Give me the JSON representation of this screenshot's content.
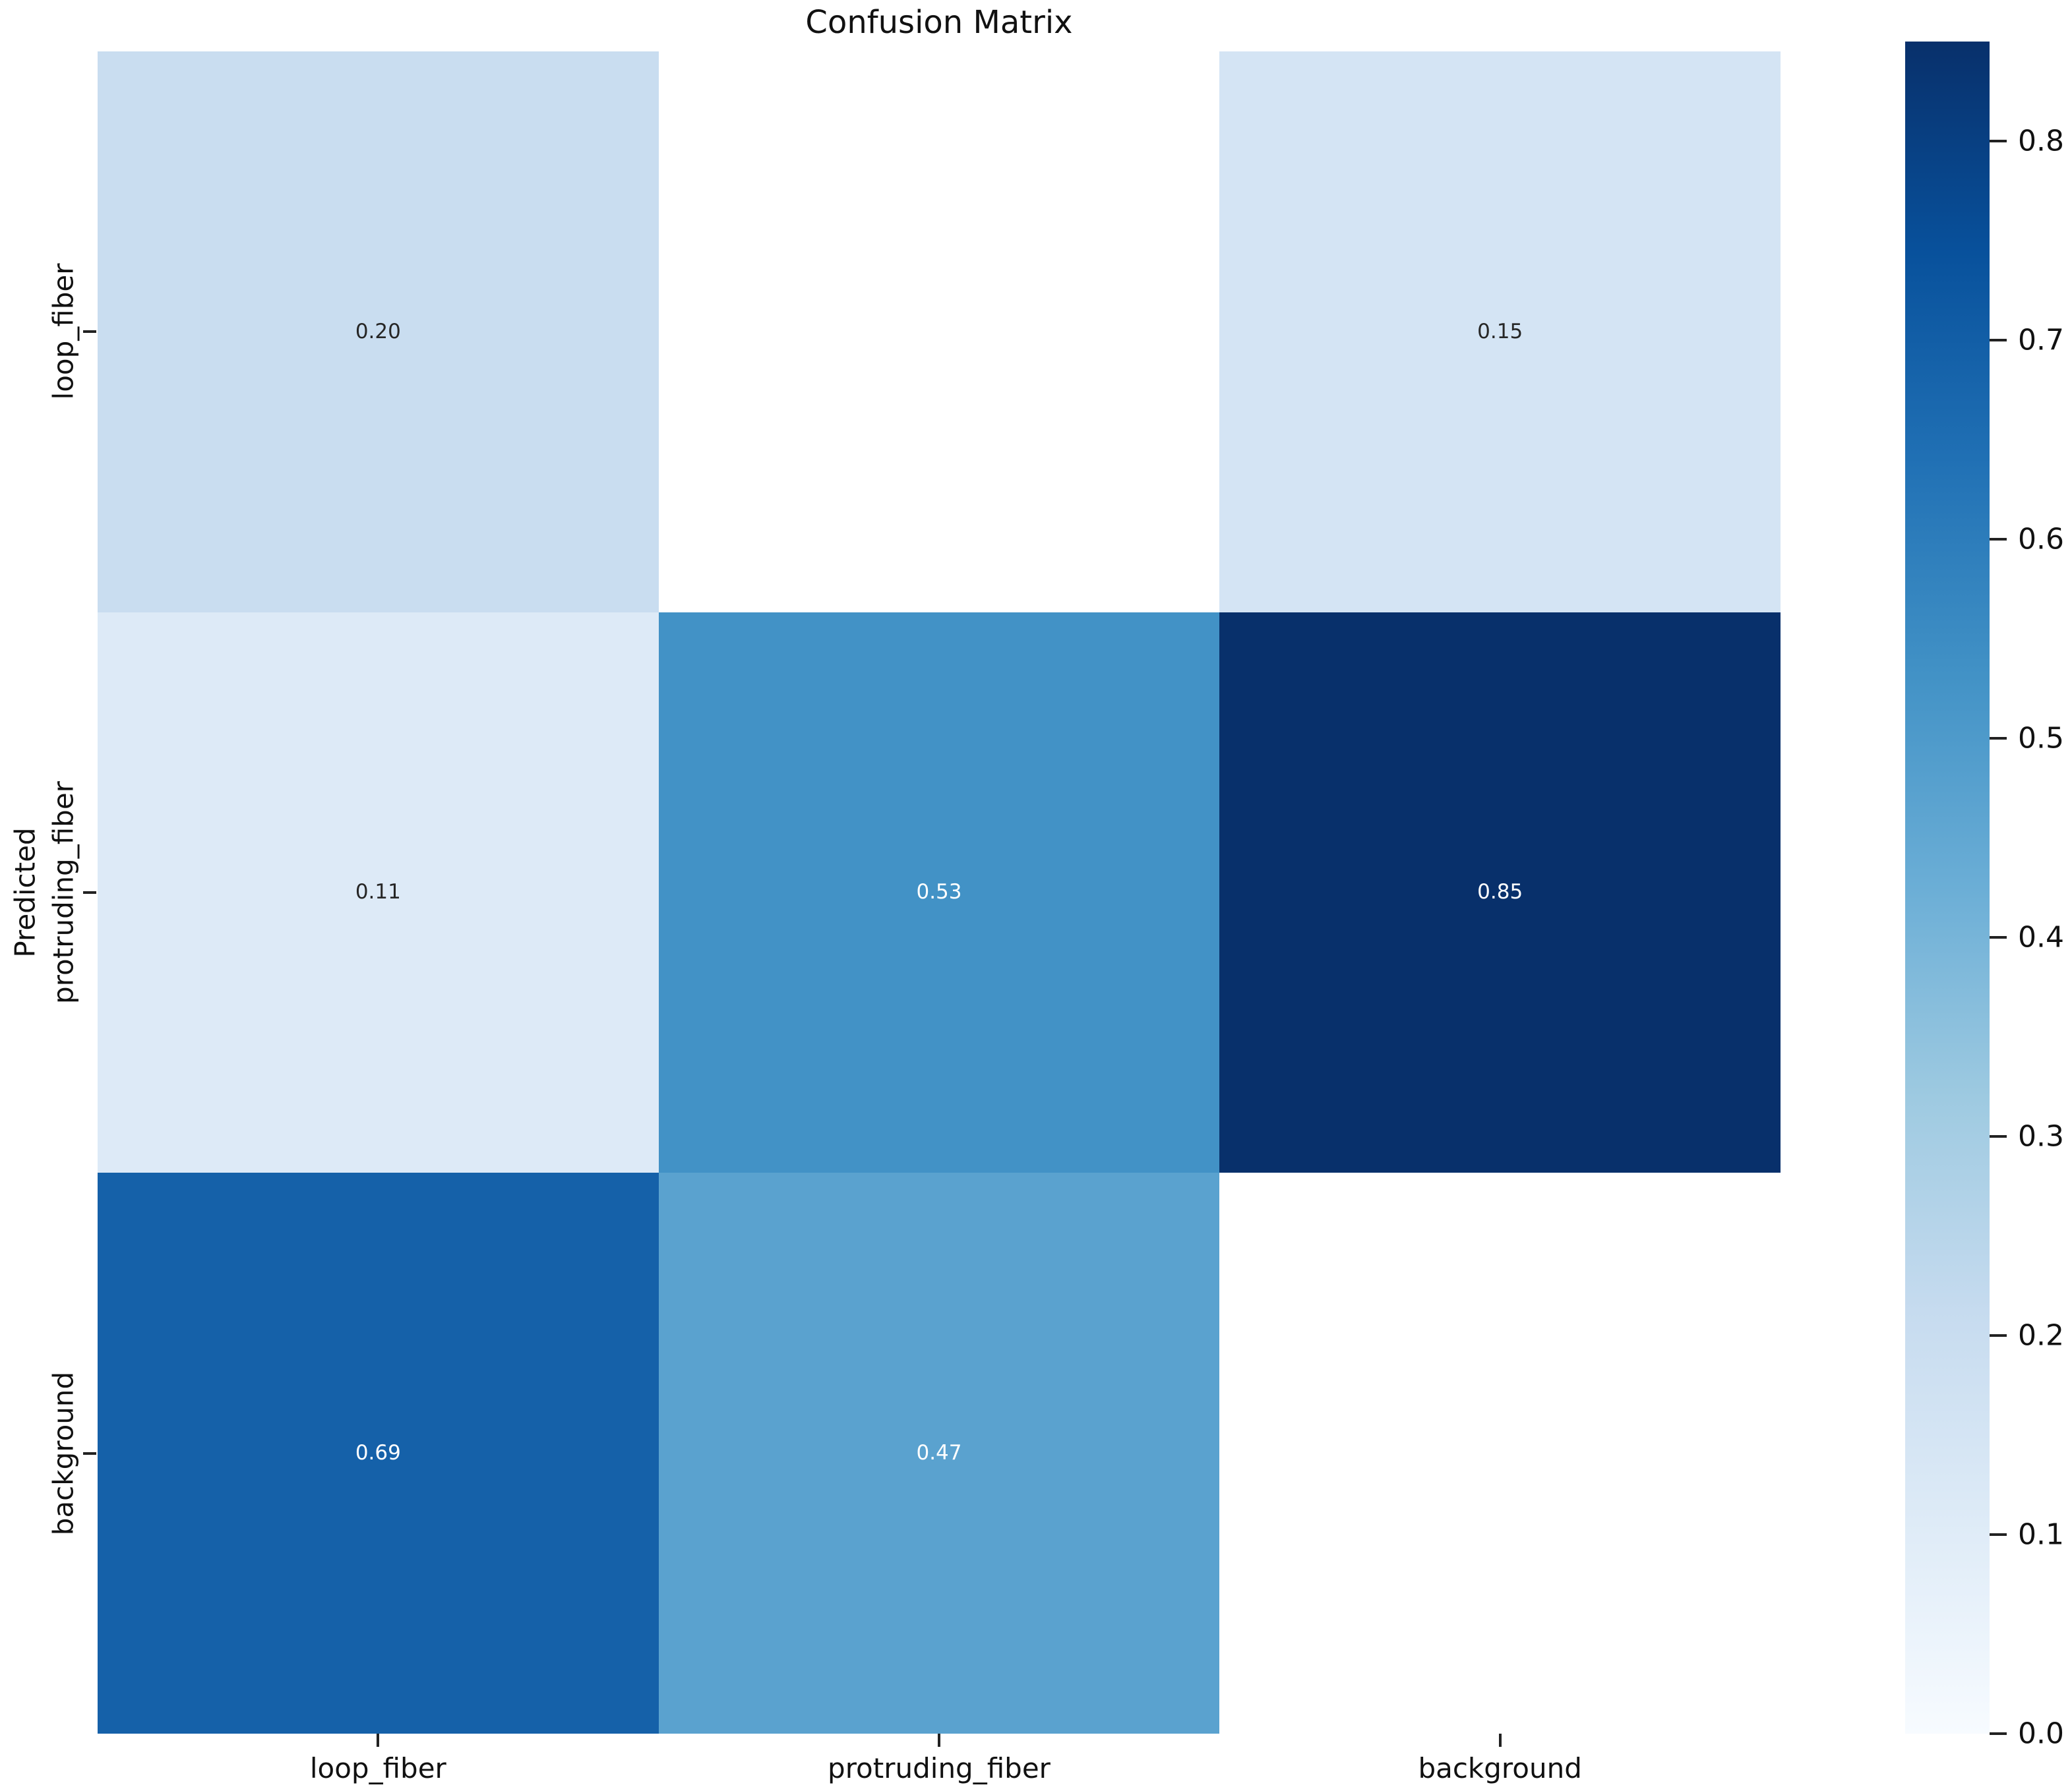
{
  "title": "Confusion Matrix",
  "colors": {
    "figure_background": "#ffffff",
    "empty_cell": "#ffffff",
    "annot_dark": "#262626",
    "annot_light": "#ffffff",
    "tick_text": "#111111",
    "blues_colormap": [
      "#f7fbff",
      "#deebf7",
      "#c6dbef",
      "#9ecae1",
      "#6baed6",
      "#4292c6",
      "#2171b5",
      "#08519c",
      "#08306b"
    ]
  },
  "chart_data": {
    "type": "heatmap",
    "title": "Confusion Matrix",
    "xlabel": "",
    "ylabel": "Predicted",
    "x_categories": [
      "loop_fiber",
      "protruding_fiber",
      "background"
    ],
    "y_categories": [
      "loop_fiber",
      "protruding_fiber",
      "background"
    ],
    "values": [
      [
        0.2,
        null,
        0.15
      ],
      [
        0.11,
        0.53,
        0.85
      ],
      [
        0.69,
        0.47,
        null
      ]
    ],
    "value_labels": [
      [
        "0.20",
        "",
        "0.15"
      ],
      [
        "0.11",
        "0.53",
        "0.85"
      ],
      [
        "0.69",
        "0.47",
        ""
      ]
    ],
    "vmin": 0.0,
    "vmax": 0.85,
    "colormap": "Blues",
    "colorbar_ticks": [
      "0.0",
      "0.1",
      "0.2",
      "0.3",
      "0.4",
      "0.5",
      "0.6",
      "0.7",
      "0.8"
    ],
    "colorbar_position": "right",
    "grid": false
  }
}
